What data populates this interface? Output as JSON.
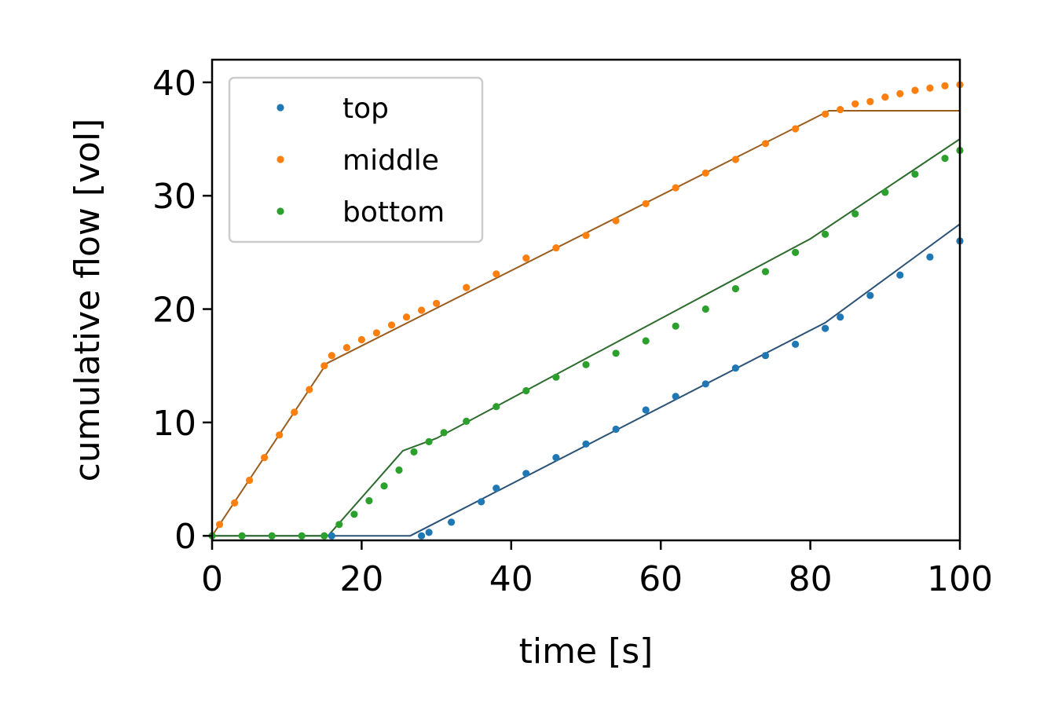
{
  "chart_data": {
    "type": "scatter",
    "title": "",
    "xlabel": "time [s]",
    "ylabel": "cumulative flow [vol]",
    "xlim": [
      0,
      100
    ],
    "ylim": [
      -0.4,
      42
    ],
    "xticks": [
      "0",
      "20",
      "40",
      "60",
      "80",
      "100"
    ],
    "yticks": [
      "0",
      "10",
      "20",
      "30",
      "40"
    ],
    "xtick_values": [
      0,
      20,
      40,
      60,
      80,
      100
    ],
    "ytick_values": [
      0,
      10,
      20,
      30,
      40
    ],
    "grid": false,
    "legend_position": "top-left",
    "series": [
      {
        "name": "top",
        "color": "#1f77b4",
        "fit_color": "#2b5276",
        "fit_line": [
          [
            0,
            0
          ],
          [
            26.5,
            0
          ],
          [
            82,
            18.8
          ],
          [
            100,
            27.5
          ]
        ],
        "points": [
          [
            16,
            0
          ],
          [
            28,
            0
          ],
          [
            29,
            0.3
          ],
          [
            32,
            1.2
          ],
          [
            36,
            3.0
          ],
          [
            38,
            4.2
          ],
          [
            42,
            5.5
          ],
          [
            46,
            6.9
          ],
          [
            50,
            8.1
          ],
          [
            54,
            9.4
          ],
          [
            58,
            11.1
          ],
          [
            62,
            12.3
          ],
          [
            66,
            13.4
          ],
          [
            70,
            14.8
          ],
          [
            74,
            15.9
          ],
          [
            78,
            16.9
          ],
          [
            82,
            18.3
          ],
          [
            84,
            19.3
          ],
          [
            88,
            21.2
          ],
          [
            92,
            23.0
          ],
          [
            96,
            24.6
          ],
          [
            100,
            26.0
          ]
        ]
      },
      {
        "name": "middle",
        "color": "#ff7f0e",
        "fit_color": "#9a5d1e",
        "fit_line": [
          [
            0,
            0
          ],
          [
            15.3,
            15.2
          ],
          [
            82.5,
            37.5
          ],
          [
            100,
            37.5
          ]
        ],
        "points": [
          [
            1,
            1.0
          ],
          [
            3,
            2.9
          ],
          [
            5,
            4.9
          ],
          [
            7,
            6.9
          ],
          [
            9,
            8.9
          ],
          [
            11,
            10.9
          ],
          [
            13,
            12.9
          ],
          [
            15,
            15.0
          ],
          [
            16,
            15.9
          ],
          [
            18,
            16.6
          ],
          [
            20,
            17.3
          ],
          [
            22,
            17.9
          ],
          [
            24,
            18.6
          ],
          [
            26,
            19.3
          ],
          [
            28,
            19.9
          ],
          [
            30,
            20.5
          ],
          [
            34,
            21.9
          ],
          [
            38,
            23.1
          ],
          [
            42,
            24.5
          ],
          [
            46,
            25.4
          ],
          [
            50,
            26.5
          ],
          [
            54,
            27.8
          ],
          [
            58,
            29.3
          ],
          [
            62,
            30.7
          ],
          [
            66,
            32.0
          ],
          [
            70,
            33.2
          ],
          [
            74,
            34.6
          ],
          [
            78,
            35.9
          ],
          [
            82,
            37.2
          ],
          [
            84,
            37.6
          ],
          [
            86,
            38.1
          ],
          [
            88,
            38.3
          ],
          [
            90,
            38.7
          ],
          [
            92,
            39.0
          ],
          [
            94,
            39.3
          ],
          [
            96,
            39.5
          ],
          [
            98,
            39.7
          ],
          [
            100,
            39.8
          ]
        ]
      },
      {
        "name": "bottom",
        "color": "#2ca02c",
        "fit_color": "#2e6b2e",
        "fit_line": [
          [
            0,
            0
          ],
          [
            15.5,
            0
          ],
          [
            25.5,
            7.5
          ],
          [
            30,
            8.6
          ],
          [
            80,
            26.2
          ],
          [
            100,
            35.0
          ]
        ],
        "points": [
          [
            0,
            0
          ],
          [
            4,
            0
          ],
          [
            8,
            0
          ],
          [
            12,
            0
          ],
          [
            15,
            0
          ],
          [
            17,
            1.0
          ],
          [
            19,
            1.9
          ],
          [
            21,
            3.1
          ],
          [
            23,
            4.4
          ],
          [
            25,
            5.8
          ],
          [
            27,
            7.4
          ],
          [
            29,
            8.3
          ],
          [
            31,
            9.1
          ],
          [
            34,
            10.1
          ],
          [
            38,
            11.4
          ],
          [
            42,
            12.8
          ],
          [
            46,
            14.0
          ],
          [
            50,
            15.1
          ],
          [
            54,
            16.1
          ],
          [
            58,
            17.2
          ],
          [
            62,
            18.5
          ],
          [
            66,
            20.0
          ],
          [
            70,
            21.8
          ],
          [
            74,
            23.3
          ],
          [
            78,
            25.0
          ],
          [
            82,
            26.6
          ],
          [
            86,
            28.4
          ],
          [
            90,
            30.3
          ],
          [
            94,
            31.9
          ],
          [
            98,
            33.3
          ],
          [
            100,
            34.0
          ]
        ]
      }
    ]
  }
}
